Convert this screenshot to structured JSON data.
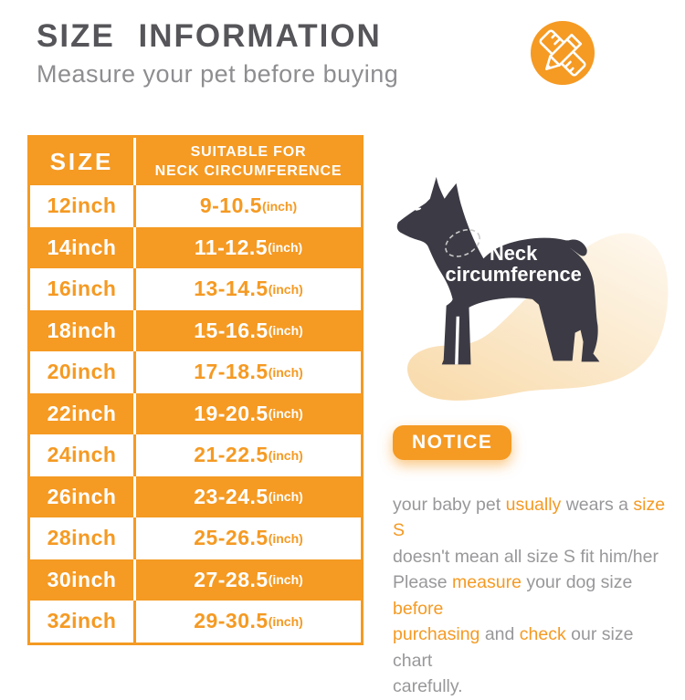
{
  "colors": {
    "accent_orange": "#F59A23",
    "title_gray": "#56565A",
    "subtitle_gray": "#8E8E91",
    "notice_gray": "#98989B",
    "dog_silhouette": "#3C3B45",
    "blob_peach": "#F9DCAE"
  },
  "header": {
    "title": "SIZE INFORMATION",
    "subtitle": "Measure your pet before buying"
  },
  "table": {
    "header": {
      "col1": "SIZE",
      "col2_line1": "SUITABLE FOR",
      "col2_line2": "NECK CIRCUMFERENCE"
    },
    "rows": [
      {
        "size": "12inch",
        "range": "9-10.5",
        "unit": "(inch)"
      },
      {
        "size": "14inch",
        "range": "11-12.5",
        "unit": "(inch)"
      },
      {
        "size": "16inch",
        "range": "13-14.5",
        "unit": "(inch)"
      },
      {
        "size": "18inch",
        "range": "15-16.5",
        "unit": "(inch)"
      },
      {
        "size": "20inch",
        "range": "17-18.5",
        "unit": "(inch)"
      },
      {
        "size": "22inch",
        "range": "19-20.5",
        "unit": "(inch)"
      },
      {
        "size": "24inch",
        "range": "21-22.5",
        "unit": "(inch)"
      },
      {
        "size": "26inch",
        "range": "23-24.5",
        "unit": "(inch)"
      },
      {
        "size": "28inch",
        "range": "25-26.5",
        "unit": "(inch)"
      },
      {
        "size": "30inch",
        "range": "27-28.5",
        "unit": "(inch)"
      },
      {
        "size": "32inch",
        "range": "29-30.5",
        "unit": "(inch)"
      }
    ]
  },
  "figure": {
    "label_line1": "Neck",
    "label_line2": "circumference"
  },
  "notice": {
    "badge": "NOTICE",
    "segments": [
      {
        "text": "your baby pet ",
        "highlight": false
      },
      {
        "text": "usually",
        "highlight": true
      },
      {
        "text": " wears a ",
        "highlight": false
      },
      {
        "text": "size S",
        "highlight": true
      },
      {
        "break": true
      },
      {
        "text": "doesn't mean all size S fit him/her",
        "highlight": false
      },
      {
        "break": true
      },
      {
        "text": "Please ",
        "highlight": false
      },
      {
        "text": "measure",
        "highlight": true
      },
      {
        "text": " your dog size ",
        "highlight": false
      },
      {
        "text": "before",
        "highlight": true
      },
      {
        "break": true
      },
      {
        "text": "purchasing",
        "highlight": true
      },
      {
        "text": " and ",
        "highlight": false
      },
      {
        "text": "check",
        "highlight": true
      },
      {
        "text": " our size chart",
        "highlight": false
      },
      {
        "break": true
      },
      {
        "text": "carefully.",
        "highlight": false
      }
    ]
  }
}
